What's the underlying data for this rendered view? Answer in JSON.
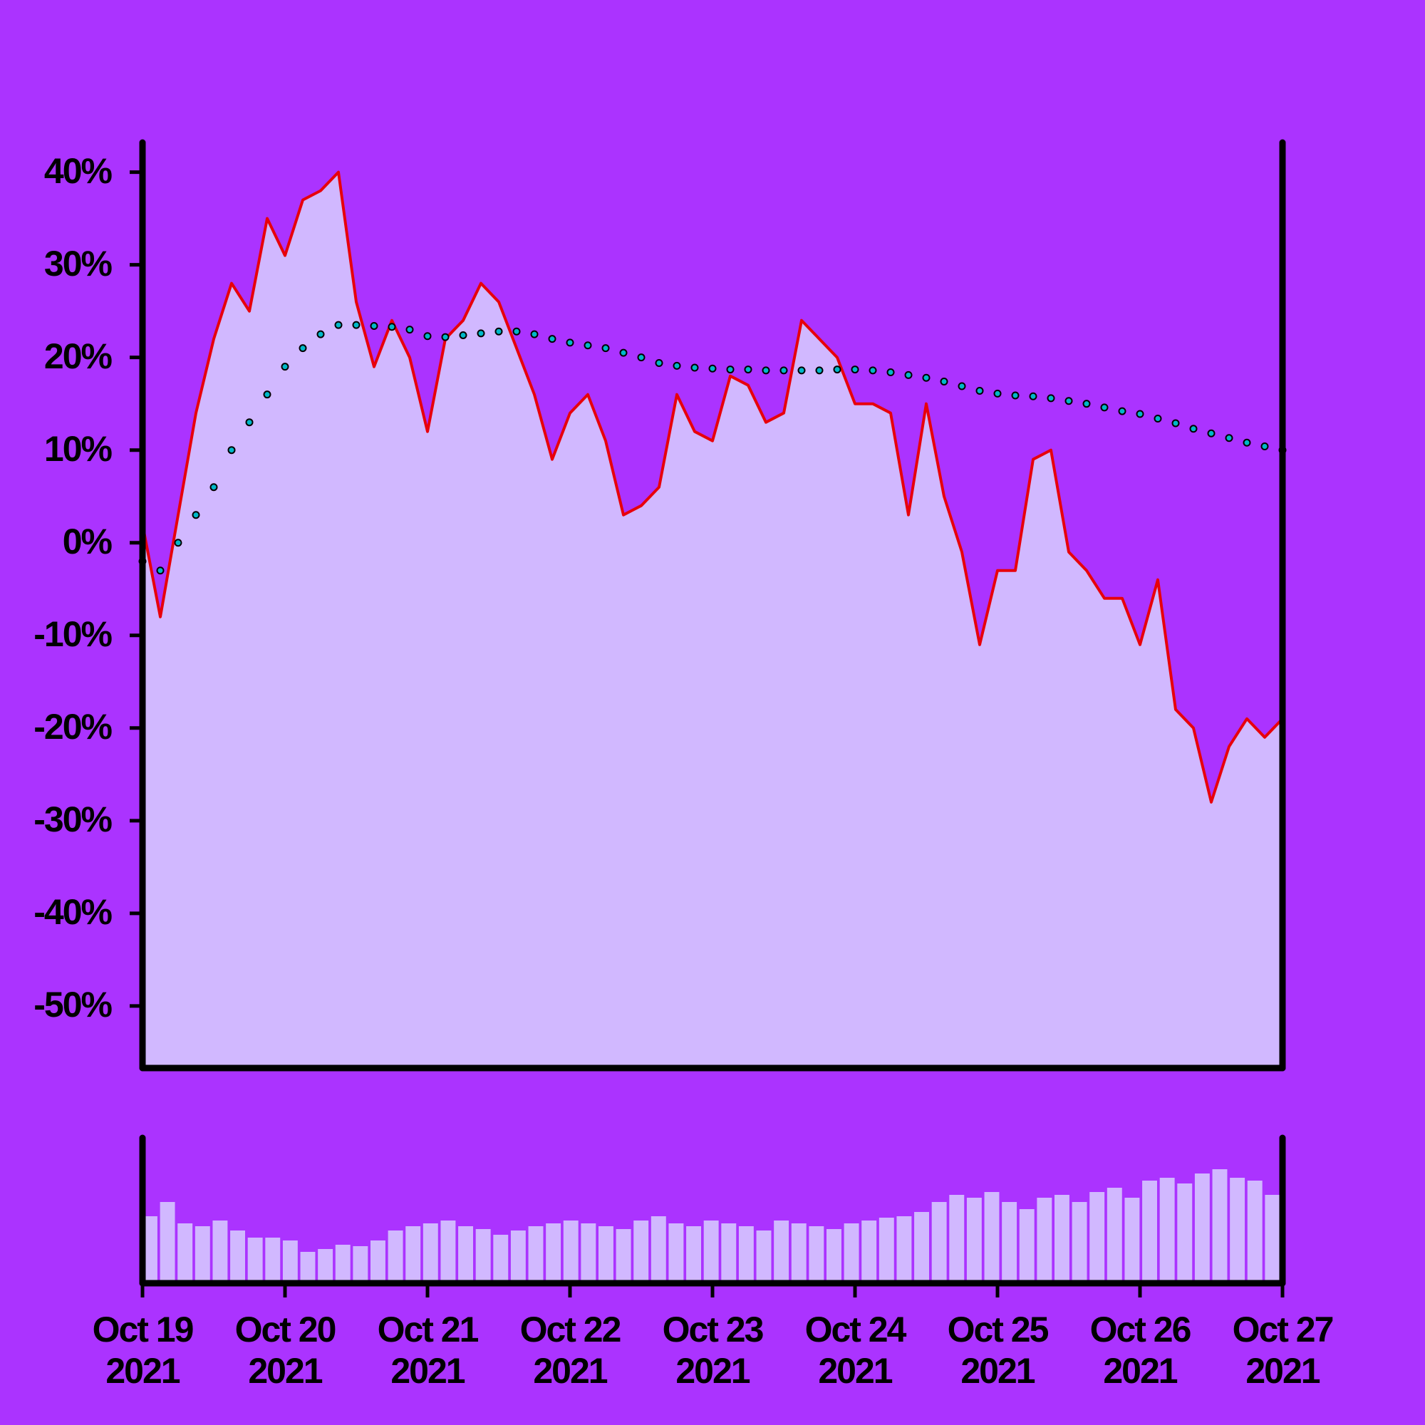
{
  "chart_data": {
    "type": "line",
    "background": "#ab33ff",
    "x": [
      0,
      0.125,
      0.25,
      0.375,
      0.5,
      0.625,
      0.75,
      0.875,
      1,
      1.125,
      1.25,
      1.375,
      1.5,
      1.625,
      1.75,
      1.875,
      2,
      2.125,
      2.25,
      2.375,
      2.5,
      2.625,
      2.75,
      2.875,
      3,
      3.125,
      3.25,
      3.375,
      3.5,
      3.625,
      3.75,
      3.875,
      4,
      4.125,
      4.25,
      4.375,
      4.5,
      4.625,
      4.75,
      4.875,
      5,
      5.125,
      5.25,
      5.375,
      5.5,
      5.625,
      5.75,
      5.875,
      6,
      6.125,
      6.25,
      6.375,
      6.5,
      6.625,
      6.75,
      6.875,
      7,
      7.125,
      7.25,
      7.375,
      7.5,
      7.625,
      7.75,
      7.875,
      8
    ],
    "xlim": [
      0,
      8
    ],
    "xticks": [
      {
        "value": 0,
        "label": "Oct 19\n2021"
      },
      {
        "value": 1,
        "label": "Oct 20\n2021"
      },
      {
        "value": 2,
        "label": "Oct 21\n2021"
      },
      {
        "value": 3,
        "label": "Oct 22\n2021"
      },
      {
        "value": 4,
        "label": "Oct 23\n2021"
      },
      {
        "value": 5,
        "label": "Oct 24\n2021"
      },
      {
        "value": 6,
        "label": "Oct 25\n2021"
      },
      {
        "value": 7,
        "label": "Oct 26\n2021"
      },
      {
        "value": 8,
        "label": "Oct 27\n2021"
      }
    ],
    "ylim": [
      -56.7,
      43.2
    ],
    "yticks": [
      {
        "value": 40,
        "label": "40%"
      },
      {
        "value": 30,
        "label": "30%"
      },
      {
        "value": 20,
        "label": "20%"
      },
      {
        "value": 10,
        "label": "10%"
      },
      {
        "value": 0,
        "label": "0%"
      },
      {
        "value": -10,
        "label": "-10%"
      },
      {
        "value": -20,
        "label": "-20%"
      },
      {
        "value": -30,
        "label": "-30%"
      },
      {
        "value": -40,
        "label": "-40%"
      },
      {
        "value": -50,
        "label": "-50%"
      }
    ],
    "series": [
      {
        "color": "#e8000b",
        "fill": "#d1b8ff",
        "style": "line",
        "values": [
          2,
          -8,
          3,
          14,
          22,
          28,
          25,
          35,
          31,
          37,
          38,
          40,
          26,
          19,
          24,
          20,
          12,
          22,
          24,
          28,
          26,
          21,
          16,
          9,
          14,
          16,
          11,
          3,
          4,
          6,
          16,
          12,
          11,
          18,
          17,
          13,
          14,
          24,
          22,
          20,
          15,
          15,
          14,
          3,
          15,
          5,
          -1,
          -11,
          -3,
          -3,
          9,
          10,
          -1,
          -3,
          -6,
          -6,
          -11,
          -4,
          -18,
          -20,
          -28,
          -22,
          -19,
          -21,
          -19
        ]
      },
      {
        "color": "#00b8c8",
        "style": "dots",
        "values": [
          -2,
          -3,
          0,
          3,
          6,
          10,
          13,
          16,
          19,
          21,
          22.5,
          23.5,
          23.5,
          23.4,
          23.3,
          23,
          22.3,
          22.2,
          22.4,
          22.6,
          22.8,
          22.8,
          22.5,
          22,
          21.6,
          21.3,
          21,
          20.5,
          20,
          19.4,
          19.1,
          18.9,
          18.8,
          18.7,
          18.7,
          18.6,
          18.6,
          18.6,
          18.6,
          18.7,
          18.7,
          18.6,
          18.4,
          18.1,
          17.8,
          17.4,
          16.9,
          16.4,
          16.1,
          15.9,
          15.8,
          15.6,
          15.3,
          15,
          14.6,
          14.2,
          13.9,
          13.4,
          12.9,
          12.3,
          11.8,
          11.3,
          10.8,
          10.4,
          10
        ]
      }
    ],
    "volume": {
      "color": "#d1b8ff",
      "ylim": [
        0,
        100
      ],
      "values": [
        45,
        55,
        40,
        38,
        42,
        35,
        30,
        30,
        28,
        20,
        22,
        25,
        24,
        28,
        35,
        38,
        40,
        42,
        38,
        36,
        32,
        35,
        38,
        40,
        42,
        40,
        38,
        36,
        42,
        45,
        40,
        38,
        42,
        40,
        38,
        35,
        42,
        40,
        38,
        36,
        40,
        42,
        44,
        45,
        48,
        55,
        60,
        58,
        62,
        55,
        50,
        58,
        60,
        55,
        62,
        65,
        58,
        70,
        72,
        68,
        75,
        78,
        72,
        70,
        60
      ]
    }
  }
}
